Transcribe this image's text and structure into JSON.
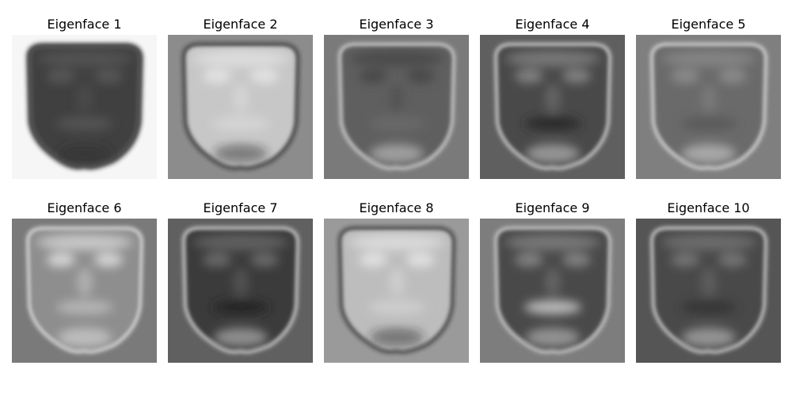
{
  "panels": [
    {
      "title": "Eigenface 1",
      "background": "#f6f6f6",
      "face_tone": "#3f3f3f",
      "edge": "#2a2a2a",
      "highlight": "#5a5a5a",
      "mouth": "#555555",
      "contrast": "dark"
    },
    {
      "title": "Eigenface 2",
      "background": "#8c8c8c",
      "face_tone": "#c7c7c7",
      "edge": "#1f1f1f",
      "highlight": "#e6e6e6",
      "mouth": "#d6d6d6",
      "contrast": "light"
    },
    {
      "title": "Eigenface 3",
      "background": "#7a7a7a",
      "face_tone": "#5e5e5e",
      "edge": "#e8e8e8",
      "highlight": "#444444",
      "mouth": "#6a6a6a",
      "contrast": "mid"
    },
    {
      "title": "Eigenface 4",
      "background": "#5f5f5f",
      "face_tone": "#484848",
      "edge": "#f0f0f0",
      "highlight": "#8a8a8a",
      "mouth": "#2a2a2a",
      "contrast": "mid"
    },
    {
      "title": "Eigenface 5",
      "background": "#7f7f7f",
      "face_tone": "#6a6a6a",
      "edge": "#f2f2f2",
      "highlight": "#8f8f8f",
      "mouth": "#5a5a5a",
      "contrast": "mid"
    },
    {
      "title": "Eigenface 6",
      "background": "#7a7a7a",
      "face_tone": "#8e8e8e",
      "edge": "#f4f4f4",
      "highlight": "#e0e0e0",
      "mouth": "#b8b8b8",
      "contrast": "light"
    },
    {
      "title": "Eigenface 7",
      "background": "#606060",
      "face_tone": "#3a3a3a",
      "edge": "#f0f0f0",
      "highlight": "#707070",
      "mouth": "#222222",
      "contrast": "dark"
    },
    {
      "title": "Eigenface 8",
      "background": "#9a9a9a",
      "face_tone": "#bdbdbd",
      "edge": "#202020",
      "highlight": "#e6e6e6",
      "mouth": "#cfcfcf",
      "contrast": "light"
    },
    {
      "title": "Eigenface 9",
      "background": "#7d7d7d",
      "face_tone": "#4a4a4a",
      "edge": "#e8e8e8",
      "highlight": "#8a8a8a",
      "mouth": "#c4c4c4",
      "contrast": "dark"
    },
    {
      "title": "Eigenface 10",
      "background": "#555555",
      "face_tone": "#4a4a4a",
      "edge": "#eeeeee",
      "highlight": "#7a7a7a",
      "mouth": "#333333",
      "contrast": "mid"
    }
  ]
}
